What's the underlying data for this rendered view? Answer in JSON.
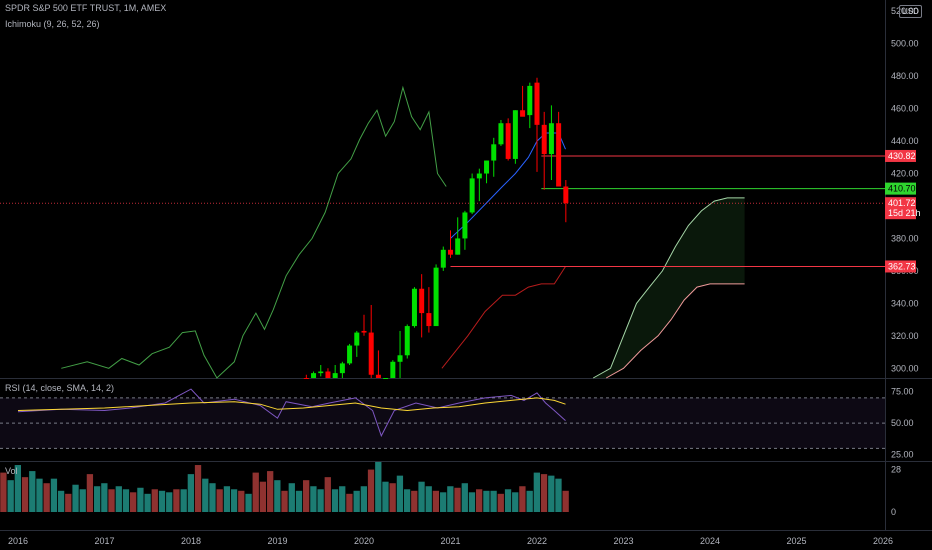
{
  "header": {
    "symbol_line": "SPDR S&P 500 ETF TRUST, 1M, AMEX",
    "indicator_line": "Ichimoku (9, 26, 52, 26)",
    "currency_button": "USD"
  },
  "rsi_pane": {
    "label": "RSI (14, close, SMA, 14, 2)",
    "ticks": [
      "75.00",
      "50.00",
      "25.00"
    ]
  },
  "volume_pane": {
    "label": "Vol",
    "ticks": [
      "28",
      "0"
    ]
  },
  "price_tags": [
    {
      "value": 430.82,
      "label": "430.82",
      "color": "#f23645",
      "text_color": "#ffffff"
    },
    {
      "value": 410.7,
      "label": "410.70",
      "color": "#2fd52f",
      "text_color": "#000000"
    },
    {
      "value": 401.72,
      "label": "401.72",
      "sub": "15d 21h",
      "color": "#f23645",
      "text_color": "#ffffff"
    },
    {
      "value": 362.73,
      "label": "362.73",
      "color": "#f23645",
      "text_color": "#ffffff"
    }
  ],
  "chart_data": {
    "type": "candlestick",
    "title": "SPDR S&P 500 ETF TRUST, 1M, AMEX",
    "price_axis": {
      "ticks": [
        "520.00",
        "500.00",
        "480.00",
        "460.00",
        "440.00",
        "420.00",
        "380.00",
        "360.00",
        "340.00",
        "320.00",
        "300.00"
      ],
      "range": [
        294,
        522
      ]
    },
    "time_axis": {
      "labels": [
        "2016",
        "2017",
        "2018",
        "2019",
        "2020",
        "2021",
        "2022",
        "2023",
        "2024",
        "2025",
        "2026"
      ]
    },
    "candles": [
      {
        "d": "2019-05",
        "o": 294,
        "h": 296,
        "l": 286,
        "c": 288
      },
      {
        "d": "2019-06",
        "o": 288,
        "h": 298,
        "l": 287,
        "c": 297
      },
      {
        "d": "2019-07",
        "o": 297,
        "h": 302,
        "l": 295,
        "c": 298
      },
      {
        "d": "2019-08",
        "o": 298,
        "h": 300,
        "l": 282,
        "c": 293
      },
      {
        "d": "2019-09",
        "o": 293,
        "h": 302,
        "l": 290,
        "c": 297
      },
      {
        "d": "2019-10",
        "o": 297,
        "h": 304,
        "l": 285,
        "c": 303
      },
      {
        "d": "2019-11",
        "o": 303,
        "h": 315,
        "l": 302,
        "c": 314
      },
      {
        "d": "2019-12",
        "o": 314,
        "h": 323,
        "l": 307,
        "c": 322
      },
      {
        "d": "2020-01",
        "o": 323,
        "h": 333,
        "l": 320,
        "c": 322
      },
      {
        "d": "2020-02",
        "o": 322,
        "h": 339,
        "l": 285,
        "c": 296
      },
      {
        "d": "2020-03",
        "o": 296,
        "h": 311,
        "l": 218,
        "c": 258
      },
      {
        "d": "2020-04",
        "o": 258,
        "h": 294,
        "l": 240,
        "c": 290
      },
      {
        "d": "2020-05",
        "o": 290,
        "h": 305,
        "l": 278,
        "c": 304
      },
      {
        "d": "2020-06",
        "o": 304,
        "h": 323,
        "l": 292,
        "c": 308
      },
      {
        "d": "2020-07",
        "o": 308,
        "h": 327,
        "l": 306,
        "c": 326
      },
      {
        "d": "2020-08",
        "o": 326,
        "h": 350,
        "l": 325,
        "c": 349
      },
      {
        "d": "2020-09",
        "o": 349,
        "h": 358,
        "l": 319,
        "c": 334
      },
      {
        "d": "2020-10",
        "o": 334,
        "h": 350,
        "l": 322,
        "c": 326
      },
      {
        "d": "2020-11",
        "o": 326,
        "h": 364,
        "l": 327,
        "c": 362
      },
      {
        "d": "2020-12",
        "o": 362,
        "h": 375,
        "l": 360,
        "c": 373
      },
      {
        "d": "2021-01",
        "o": 373,
        "h": 385,
        "l": 368,
        "c": 370
      },
      {
        "d": "2021-02",
        "o": 370,
        "h": 393,
        "l": 370,
        "c": 380
      },
      {
        "d": "2021-03",
        "o": 380,
        "h": 397,
        "l": 373,
        "c": 396
      },
      {
        "d": "2021-04",
        "o": 396,
        "h": 420,
        "l": 395,
        "c": 417
      },
      {
        "d": "2021-05",
        "o": 417,
        "h": 423,
        "l": 403,
        "c": 420
      },
      {
        "d": "2021-06",
        "o": 420,
        "h": 428,
        "l": 414,
        "c": 428
      },
      {
        "d": "2021-07",
        "o": 428,
        "h": 442,
        "l": 418,
        "c": 438
      },
      {
        "d": "2021-08",
        "o": 438,
        "h": 453,
        "l": 437,
        "c": 451
      },
      {
        "d": "2021-09",
        "o": 451,
        "h": 454,
        "l": 428,
        "c": 429
      },
      {
        "d": "2021-10",
        "o": 429,
        "h": 459,
        "l": 426,
        "c": 459
      },
      {
        "d": "2021-11",
        "o": 459,
        "h": 474,
        "l": 456,
        "c": 455
      },
      {
        "d": "2021-12",
        "o": 456,
        "h": 476,
        "l": 448,
        "c": 474
      },
      {
        "d": "2022-01",
        "o": 476,
        "h": 479,
        "l": 421,
        "c": 450
      },
      {
        "d": "2022-02",
        "o": 450,
        "h": 458,
        "l": 410,
        "c": 432
      },
      {
        "d": "2022-03",
        "o": 432,
        "h": 462,
        "l": 416,
        "c": 451
      },
      {
        "d": "2022-04",
        "o": 451,
        "h": 458,
        "l": 412,
        "c": 412
      },
      {
        "d": "2022-05",
        "o": 412,
        "h": 416,
        "l": 390,
        "c": 401.72
      }
    ],
    "tenkan_sen": [
      [
        2021,
        380
      ],
      [
        2021.2,
        390
      ],
      [
        2021.4,
        401
      ],
      [
        2021.6,
        412
      ],
      [
        2021.75,
        420
      ],
      [
        2021.9,
        430
      ],
      [
        2022,
        440
      ],
      [
        2022.1,
        445
      ],
      [
        2022.25,
        445
      ],
      [
        2022.33,
        435
      ]
    ],
    "kijun_sen": [
      [
        2020.9,
        300
      ],
      [
        2021.2,
        320
      ],
      [
        2021.4,
        335
      ],
      [
        2021.6,
        345
      ],
      [
        2021.75,
        345
      ],
      [
        2021.9,
        350
      ],
      [
        2022.05,
        352
      ],
      [
        2022.2,
        352
      ],
      [
        2022.33,
        362.73
      ]
    ],
    "chikou_span": [
      [
        2016.5,
        300
      ],
      [
        2016.8,
        304
      ],
      [
        2017.05,
        300
      ],
      [
        2017.2,
        306
      ],
      [
        2017.4,
        302
      ],
      [
        2017.55,
        309
      ],
      [
        2017.75,
        313
      ],
      [
        2017.9,
        322
      ],
      [
        2018.05,
        323
      ],
      [
        2018.15,
        308
      ],
      [
        2018.3,
        290
      ],
      [
        2018.5,
        304
      ],
      [
        2018.6,
        320
      ],
      [
        2018.75,
        334
      ],
      [
        2018.85,
        324
      ],
      [
        2018.95,
        336
      ],
      [
        2019.1,
        357
      ],
      [
        2019.25,
        370
      ],
      [
        2019.4,
        380
      ],
      [
        2019.55,
        396
      ],
      [
        2019.7,
        420
      ],
      [
        2019.85,
        429
      ],
      [
        2019.95,
        441
      ],
      [
        2020.05,
        451
      ],
      [
        2020.15,
        459
      ],
      [
        2020.25,
        443
      ],
      [
        2020.35,
        452
      ],
      [
        2020.45,
        473
      ],
      [
        2020.55,
        455
      ],
      [
        2020.65,
        447
      ],
      [
        2020.75,
        458
      ],
      [
        2020.85,
        420
      ],
      [
        2020.95,
        412
      ]
    ],
    "senkou_span_a": [
      [
        2022.65,
        290
      ],
      [
        2022.85,
        300
      ],
      [
        2023.0,
        320
      ],
      [
        2023.15,
        340
      ],
      [
        2023.3,
        350
      ],
      [
        2023.45,
        360
      ],
      [
        2023.6,
        375
      ],
      [
        2023.75,
        388
      ],
      [
        2023.9,
        397
      ],
      [
        2024.05,
        403
      ],
      [
        2024.2,
        405
      ],
      [
        2024.4,
        405
      ]
    ],
    "senkou_span_b": [
      [
        2022.8,
        282
      ],
      [
        2023.0,
        300
      ],
      [
        2023.2,
        311
      ],
      [
        2023.4,
        320
      ],
      [
        2023.55,
        330
      ],
      [
        2023.7,
        342
      ],
      [
        2023.85,
        350
      ],
      [
        2024.0,
        352
      ],
      [
        2024.4,
        352
      ]
    ],
    "rsi": {
      "range": [
        20,
        85
      ],
      "bands": [
        70,
        50,
        30
      ],
      "values": [
        [
          2016,
          59
        ],
        [
          2016.5,
          61
        ],
        [
          2017,
          60
        ],
        [
          2017.3,
          62
        ],
        [
          2017.7,
          66
        ],
        [
          2018.0,
          77
        ],
        [
          2018.15,
          66
        ],
        [
          2018.5,
          69
        ],
        [
          2018.8,
          64
        ],
        [
          2019.0,
          54
        ],
        [
          2019.1,
          67
        ],
        [
          2019.4,
          63
        ],
        [
          2019.6,
          66
        ],
        [
          2019.9,
          70
        ],
        [
          2020.1,
          60
        ],
        [
          2020.2,
          40
        ],
        [
          2020.35,
          60
        ],
        [
          2020.6,
          66
        ],
        [
          2020.85,
          62
        ],
        [
          2021.1,
          66
        ],
        [
          2021.4,
          70
        ],
        [
          2021.7,
          72
        ],
        [
          2021.85,
          68
        ],
        [
          2022.0,
          74
        ],
        [
          2022.1,
          66
        ],
        [
          2022.2,
          60
        ],
        [
          2022.33,
          52
        ]
      ],
      "ma": [
        [
          2016,
          60
        ],
        [
          2016.5,
          61
        ],
        [
          2017,
          62
        ],
        [
          2017.5,
          64
        ],
        [
          2018.0,
          66
        ],
        [
          2018.5,
          67
        ],
        [
          2018.8,
          65
        ],
        [
          2019.0,
          61
        ],
        [
          2019.3,
          62
        ],
        [
          2019.6,
          64
        ],
        [
          2019.9,
          66
        ],
        [
          2020.2,
          62
        ],
        [
          2020.5,
          60
        ],
        [
          2020.8,
          62
        ],
        [
          2021.1,
          63
        ],
        [
          2021.4,
          66
        ],
        [
          2021.7,
          68
        ],
        [
          2022.0,
          70
        ],
        [
          2022.2,
          68
        ],
        [
          2022.33,
          65
        ]
      ]
    },
    "volume": {
      "range": [
        0,
        33
      ],
      "bars": [
        [
          2015.75,
          22
        ],
        [
          2015.833,
          26
        ],
        [
          2015.917,
          21
        ],
        [
          2016.0,
          31
        ],
        [
          2016.083,
          23
        ],
        [
          2016.167,
          27
        ],
        [
          2016.25,
          22
        ],
        [
          2016.333,
          19
        ],
        [
          2016.417,
          22
        ],
        [
          2016.5,
          14
        ],
        [
          2016.583,
          12
        ],
        [
          2016.667,
          18
        ],
        [
          2016.75,
          15
        ],
        [
          2016.833,
          25
        ],
        [
          2016.917,
          17
        ],
        [
          2017.0,
          19
        ],
        [
          2017.083,
          15
        ],
        [
          2017.167,
          17
        ],
        [
          2017.25,
          15
        ],
        [
          2017.333,
          13
        ],
        [
          2017.417,
          16
        ],
        [
          2017.5,
          12
        ],
        [
          2017.583,
          15
        ],
        [
          2017.667,
          14
        ],
        [
          2017.75,
          13
        ],
        [
          2017.833,
          15
        ],
        [
          2017.917,
          15
        ],
        [
          2018.0,
          25
        ],
        [
          2018.083,
          31
        ],
        [
          2018.167,
          22
        ],
        [
          2018.25,
          19
        ],
        [
          2018.333,
          15
        ],
        [
          2018.417,
          17
        ],
        [
          2018.5,
          15
        ],
        [
          2018.583,
          14
        ],
        [
          2018.667,
          12
        ],
        [
          2018.75,
          26
        ],
        [
          2018.833,
          20
        ],
        [
          2018.917,
          27
        ],
        [
          2019.0,
          21
        ],
        [
          2019.083,
          14
        ],
        [
          2019.167,
          19
        ],
        [
          2019.25,
          14
        ],
        [
          2019.333,
          21
        ],
        [
          2019.417,
          17
        ],
        [
          2019.5,
          15
        ],
        [
          2019.583,
          23
        ],
        [
          2019.667,
          15
        ],
        [
          2019.75,
          17
        ],
        [
          2019.833,
          12
        ],
        [
          2019.917,
          14
        ],
        [
          2020.0,
          17
        ],
        [
          2020.083,
          28
        ],
        [
          2020.167,
          33
        ],
        [
          2020.25,
          20
        ],
        [
          2020.333,
          19
        ],
        [
          2020.417,
          24
        ],
        [
          2020.5,
          15
        ],
        [
          2020.583,
          14
        ],
        [
          2020.667,
          20
        ],
        [
          2020.75,
          17
        ],
        [
          2020.833,
          14
        ],
        [
          2020.917,
          13
        ],
        [
          2021.0,
          17
        ],
        [
          2021.083,
          16
        ],
        [
          2021.167,
          19
        ],
        [
          2021.25,
          13
        ],
        [
          2021.333,
          15
        ],
        [
          2021.417,
          14
        ],
        [
          2021.5,
          14
        ],
        [
          2021.583,
          12
        ],
        [
          2021.667,
          15
        ],
        [
          2021.75,
          13
        ],
        [
          2021.833,
          17
        ],
        [
          2021.917,
          14
        ],
        [
          2022.0,
          26
        ],
        [
          2022.083,
          25
        ],
        [
          2022.167,
          24
        ],
        [
          2022.25,
          22
        ],
        [
          2022.333,
          14
        ]
      ]
    }
  }
}
